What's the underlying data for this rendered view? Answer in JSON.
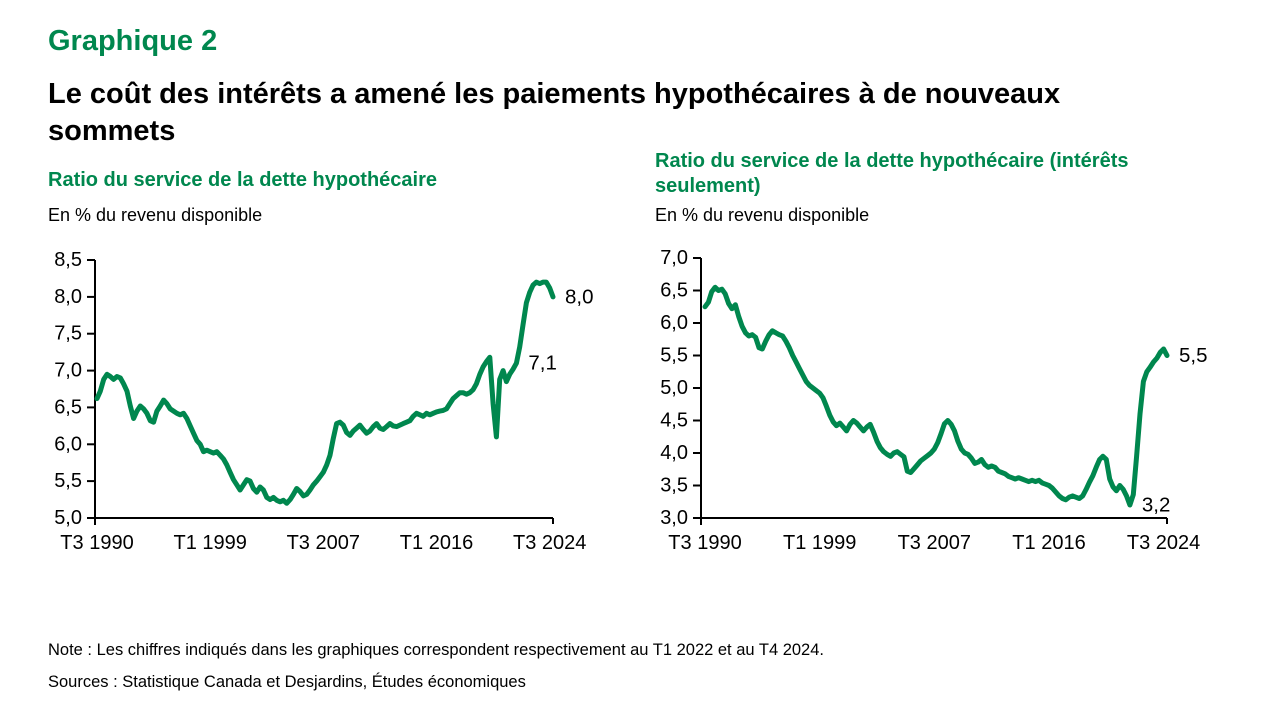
{
  "header": {
    "chart_number": "Graphique 2",
    "title": "Le coût des intérêts a amené les paiements hypothécaires à de nouveaux\nsommets"
  },
  "footer": {
    "note": "Note : Les chiffres indiqués dans les graphiques correspondent respectivement au T1 2022 et au T4 2024.",
    "sources": "Sources : Statistique Canada et Desjardins, Études économiques"
  },
  "colors": {
    "green": "#00874E",
    "axis": "#000000",
    "text": "#000000"
  },
  "chart_data": [
    {
      "type": "line",
      "title": "Ratio du service de la dette hypothécaire",
      "unit_label": "En % du revenu disponible",
      "frequency": "quarterly",
      "x_range": [
        "T3 1990",
        "T4 2024"
      ],
      "ylim": [
        5.0,
        8.5
      ],
      "grid": false,
      "legend": "none",
      "line_color": "#00874E",
      "y_ticks": [
        {
          "v": 8.5,
          "label": "8,5"
        },
        {
          "v": 8.0,
          "label": "8,0"
        },
        {
          "v": 7.5,
          "label": "7,5"
        },
        {
          "v": 7.0,
          "label": "7,0"
        },
        {
          "v": 6.5,
          "label": "6,5"
        },
        {
          "v": 6.0,
          "label": "6,0"
        },
        {
          "v": 5.5,
          "label": "5,5"
        },
        {
          "v": 5.0,
          "label": "5,0"
        }
      ],
      "x_ticks": [
        {
          "i": 0,
          "label": "T3 1990"
        },
        {
          "i": 34,
          "label": "T1 1999"
        },
        {
          "i": 68,
          "label": "T3 2007"
        },
        {
          "i": 102,
          "label": "T1 2016"
        },
        {
          "i": 136,
          "label": "T3 2024"
        }
      ],
      "series": [
        {
          "name": "Ratio du service de la dette hypothécaire",
          "values": [
            6.62,
            6.72,
            6.88,
            6.95,
            6.92,
            6.88,
            6.92,
            6.9,
            6.82,
            6.72,
            6.52,
            6.35,
            6.45,
            6.52,
            6.48,
            6.42,
            6.32,
            6.3,
            6.45,
            6.52,
            6.6,
            6.55,
            6.48,
            6.45,
            6.42,
            6.4,
            6.42,
            6.35,
            6.25,
            6.15,
            6.05,
            6.0,
            5.9,
            5.92,
            5.9,
            5.88,
            5.9,
            5.85,
            5.8,
            5.72,
            5.62,
            5.52,
            5.45,
            5.38,
            5.45,
            5.52,
            5.5,
            5.4,
            5.35,
            5.42,
            5.38,
            5.28,
            5.25,
            5.28,
            5.24,
            5.22,
            5.24,
            5.2,
            5.25,
            5.32,
            5.4,
            5.36,
            5.3,
            5.32,
            5.38,
            5.45,
            5.5,
            5.56,
            5.62,
            5.72,
            5.85,
            6.08,
            6.28,
            6.3,
            6.26,
            6.16,
            6.12,
            6.18,
            6.22,
            6.26,
            6.2,
            6.15,
            6.18,
            6.24,
            6.28,
            6.22,
            6.2,
            6.24,
            6.28,
            6.25,
            6.24,
            6.26,
            6.28,
            6.3,
            6.32,
            6.38,
            6.42,
            6.4,
            6.38,
            6.42,
            6.4,
            6.42,
            6.44,
            6.45,
            6.46,
            6.48,
            6.55,
            6.62,
            6.66,
            6.7,
            6.7,
            6.68,
            6.7,
            6.74,
            6.82,
            6.95,
            7.05,
            7.12,
            7.18,
            6.55,
            6.1,
            6.88,
            7.0,
            6.85,
            6.95,
            7.02,
            7.1,
            7.32,
            7.62,
            7.92,
            8.06,
            8.16,
            8.2,
            8.18,
            8.2,
            8.2,
            8.12,
            8.0
          ]
        }
      ],
      "annotations": [
        {
          "label": "7,1",
          "i": 126,
          "value": 7.1,
          "period": "T1 2022"
        },
        {
          "label": "8,0",
          "i": 137,
          "value": 8.0,
          "period": "T4 2024"
        }
      ]
    },
    {
      "type": "line",
      "title": "Ratio du service de la dette hypothécaire (intérêts\nseulement)",
      "unit_label": "En % du revenu disponible",
      "frequency": "quarterly",
      "x_range": [
        "T3 1990",
        "T4 2024"
      ],
      "ylim": [
        3.0,
        7.0
      ],
      "grid": false,
      "legend": "none",
      "line_color": "#00874E",
      "y_ticks": [
        {
          "v": 7.0,
          "label": "7,0"
        },
        {
          "v": 6.5,
          "label": "6,5"
        },
        {
          "v": 6.0,
          "label": "6,0"
        },
        {
          "v": 5.5,
          "label": "5,5"
        },
        {
          "v": 5.0,
          "label": "5,0"
        },
        {
          "v": 4.5,
          "label": "4,5"
        },
        {
          "v": 4.0,
          "label": "4,0"
        },
        {
          "v": 3.5,
          "label": "3,5"
        },
        {
          "v": 3.0,
          "label": "3,0"
        }
      ],
      "x_ticks": [
        {
          "i": 0,
          "label": "T3 1990"
        },
        {
          "i": 34,
          "label": "T1 1999"
        },
        {
          "i": 68,
          "label": "T3 2007"
        },
        {
          "i": 102,
          "label": "T1 2016"
        },
        {
          "i": 136,
          "label": "T3 2024"
        }
      ],
      "series": [
        {
          "name": "Ratio du service de la dette hypothécaire (intérêts seulement)",
          "values": [
            6.25,
            6.32,
            6.48,
            6.55,
            6.5,
            6.52,
            6.45,
            6.3,
            6.22,
            6.28,
            6.1,
            5.95,
            5.85,
            5.8,
            5.82,
            5.78,
            5.62,
            5.6,
            5.72,
            5.82,
            5.88,
            5.85,
            5.82,
            5.8,
            5.72,
            5.62,
            5.5,
            5.4,
            5.3,
            5.2,
            5.1,
            5.04,
            5.0,
            4.96,
            4.92,
            4.85,
            4.72,
            4.58,
            4.48,
            4.42,
            4.46,
            4.4,
            4.34,
            4.44,
            4.5,
            4.46,
            4.4,
            4.34,
            4.4,
            4.44,
            4.32,
            4.18,
            4.08,
            4.02,
            3.98,
            3.95,
            4.0,
            4.02,
            3.98,
            3.94,
            3.72,
            3.7,
            3.76,
            3.82,
            3.88,
            3.92,
            3.96,
            4.0,
            4.06,
            4.16,
            4.3,
            4.45,
            4.5,
            4.44,
            4.34,
            4.18,
            4.06,
            4.0,
            3.98,
            3.92,
            3.84,
            3.86,
            3.9,
            3.82,
            3.78,
            3.8,
            3.78,
            3.72,
            3.7,
            3.68,
            3.64,
            3.62,
            3.6,
            3.62,
            3.6,
            3.58,
            3.56,
            3.58,
            3.56,
            3.58,
            3.54,
            3.52,
            3.5,
            3.46,
            3.4,
            3.34,
            3.3,
            3.28,
            3.32,
            3.34,
            3.32,
            3.3,
            3.34,
            3.44,
            3.55,
            3.65,
            3.78,
            3.9,
            3.95,
            3.9,
            3.6,
            3.48,
            3.42,
            3.5,
            3.44,
            3.34,
            3.2,
            3.36,
            3.95,
            4.6,
            5.1,
            5.25,
            5.32,
            5.4,
            5.46,
            5.55,
            5.6,
            5.5
          ]
        }
      ],
      "annotations": [
        {
          "label": "3,2",
          "i": 126,
          "value": 3.2,
          "period": "T1 2022"
        },
        {
          "label": "5,5",
          "i": 137,
          "value": 5.5,
          "period": "T4 2024"
        }
      ]
    }
  ]
}
